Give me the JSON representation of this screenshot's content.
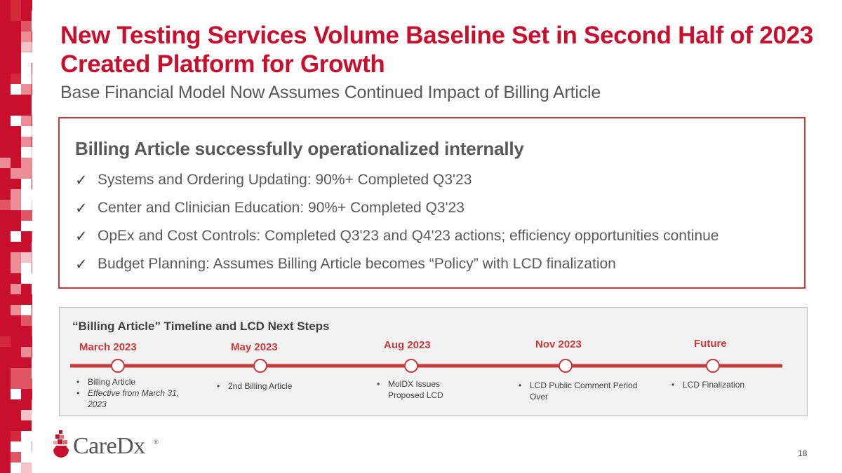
{
  "slide": {
    "title_line1": "New Testing Services Volume Baseline Set in Second Half of 2023",
    "title_line2": "Created Platform for Growth",
    "subtitle": "Base Financial Model Now Assumes Continued Impact of Billing Article",
    "page_number": "18"
  },
  "callout": {
    "heading": "Billing Article successfully operationalized internally",
    "items": [
      "Systems and Ordering Updating: 90%+ Completed Q3'23",
      "Center and Clinician Education: 90%+ Completed Q3'23",
      "OpEx and Cost Controls: Completed Q3'23 and Q4'23 actions; efficiency opportunities continue",
      "Budget Planning: Assumes Billing Article becomes “Policy” with LCD finalization"
    ],
    "check_glyph": "✓"
  },
  "timeline": {
    "title": "“Billing Article” Timeline and LCD Next Steps",
    "milestones": [
      {
        "date": "March 2023",
        "notes": [
          "Billing Article",
          "Effective from March 31, 2023"
        ]
      },
      {
        "date": "May 2023",
        "notes": [
          "2nd Billing Article"
        ]
      },
      {
        "date": "Aug 2023",
        "notes": [
          "MolDX Issues Proposed LCD"
        ]
      },
      {
        "date": "Nov 2023",
        "notes": [
          "LCD Public Comment Period Over"
        ]
      },
      {
        "date": "Future",
        "notes": [
          "LCD Finalization"
        ]
      }
    ]
  },
  "logo": {
    "text": "CareDx",
    "registered": "®"
  },
  "colors": {
    "brand_red": "#c8102e",
    "line_red": "#c8393b",
    "text_gray": "#595959",
    "panel_gray": "#f2f2f2"
  }
}
